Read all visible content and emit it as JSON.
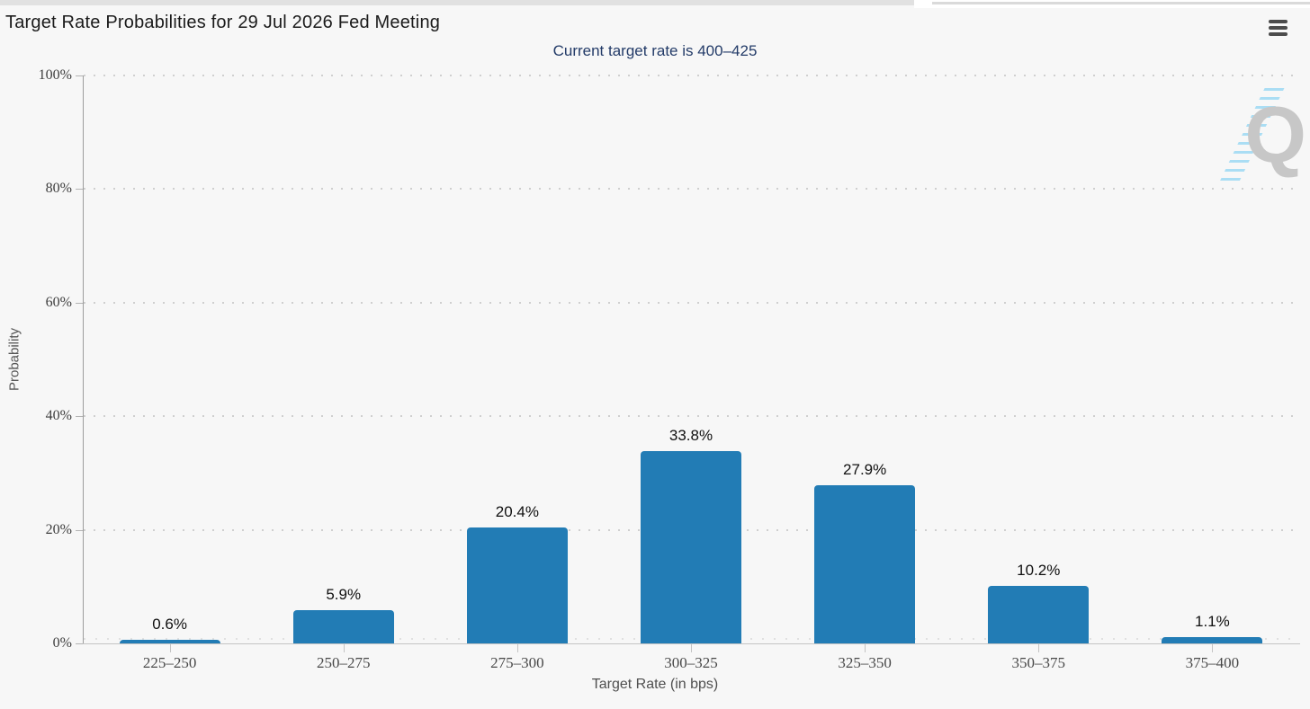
{
  "toolbar": {
    "menu_icon": "hamburger"
  },
  "watermark_letter": "Q",
  "chart_data": {
    "type": "bar",
    "title": "Target Rate Probabilities for 29 Jul 2026 Fed Meeting",
    "subtitle": "Current target rate is 400–425",
    "categories": [
      "225–250",
      "250–275",
      "275–300",
      "300–325",
      "325–350",
      "350–375",
      "375–400"
    ],
    "values": [
      0.6,
      5.9,
      20.4,
      33.8,
      27.9,
      10.2,
      1.1
    ],
    "value_labels": [
      "0.6%",
      "5.9%",
      "20.4%",
      "33.8%",
      "27.9%",
      "10.2%",
      "1.1%"
    ],
    "xlabel": "Target Rate (in bps)",
    "ylabel": "Probability",
    "ylim": [
      0,
      100
    ],
    "yticks": [
      0,
      20,
      40,
      60,
      80,
      100
    ],
    "ytick_labels": [
      "0%",
      "20%",
      "40%",
      "60%",
      "80%",
      "100%"
    ],
    "grid": "dotted horizontal gridlines at 20% intervals",
    "legend": "none",
    "bar_color": "#227cb5",
    "subtitle_color": "#233b68"
  }
}
